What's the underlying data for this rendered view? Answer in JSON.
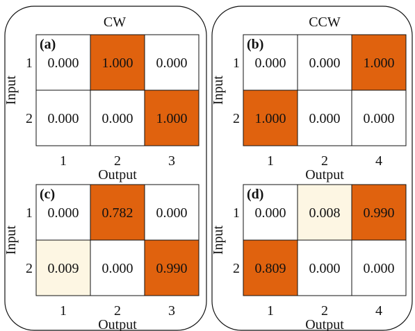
{
  "colors": {
    "high": "#e0620e",
    "low": "#fdf6e3",
    "zero": "#ffffff",
    "border": "#111111"
  },
  "groups": [
    {
      "title": "CW"
    },
    {
      "title": "CCW"
    }
  ],
  "chart_data": [
    {
      "type": "heatmap",
      "panel_label": "(a)",
      "group": "CW",
      "ylabel": "Input",
      "xlabel": "Output",
      "rows": [
        "1",
        "2"
      ],
      "columns": [
        "1",
        "2",
        "3"
      ],
      "values": [
        [
          0.0,
          1.0,
          0.0
        ],
        [
          0.0,
          0.0,
          1.0
        ]
      ],
      "cells": [
        [
          "0.000",
          "1.000",
          "0.000"
        ],
        [
          "0.000",
          "0.000",
          "1.000"
        ]
      ]
    },
    {
      "type": "heatmap",
      "panel_label": "(b)",
      "group": "CCW",
      "ylabel": "Input",
      "xlabel": "Output",
      "rows": [
        "1",
        "2"
      ],
      "columns": [
        "1",
        "2",
        "4"
      ],
      "values": [
        [
          0.0,
          0.0,
          1.0
        ],
        [
          1.0,
          0.0,
          0.0
        ]
      ],
      "cells": [
        [
          "0.000",
          "0.000",
          "1.000"
        ],
        [
          "1.000",
          "0.000",
          "0.000"
        ]
      ]
    },
    {
      "type": "heatmap",
      "panel_label": "(c)",
      "group": "CW",
      "ylabel": "Input",
      "xlabel": "Output",
      "rows": [
        "1",
        "2"
      ],
      "columns": [
        "1",
        "2",
        "3"
      ],
      "values": [
        [
          0.0,
          0.782,
          0.0
        ],
        [
          0.009,
          0.0,
          0.99
        ]
      ],
      "cells": [
        [
          "0.000",
          "0.782",
          "0.000"
        ],
        [
          "0.009",
          "0.000",
          "0.990"
        ]
      ]
    },
    {
      "type": "heatmap",
      "panel_label": "(d)",
      "group": "CCW",
      "ylabel": "Input",
      "xlabel": "Output",
      "rows": [
        "1",
        "2"
      ],
      "columns": [
        "1",
        "2",
        "4"
      ],
      "values": [
        [
          0.0,
          0.008,
          0.99
        ],
        [
          0.809,
          0.0,
          0.0
        ]
      ],
      "cells": [
        [
          "0.000",
          "0.008",
          "0.990"
        ],
        [
          "0.809",
          "0.000",
          "0.000"
        ]
      ]
    }
  ]
}
